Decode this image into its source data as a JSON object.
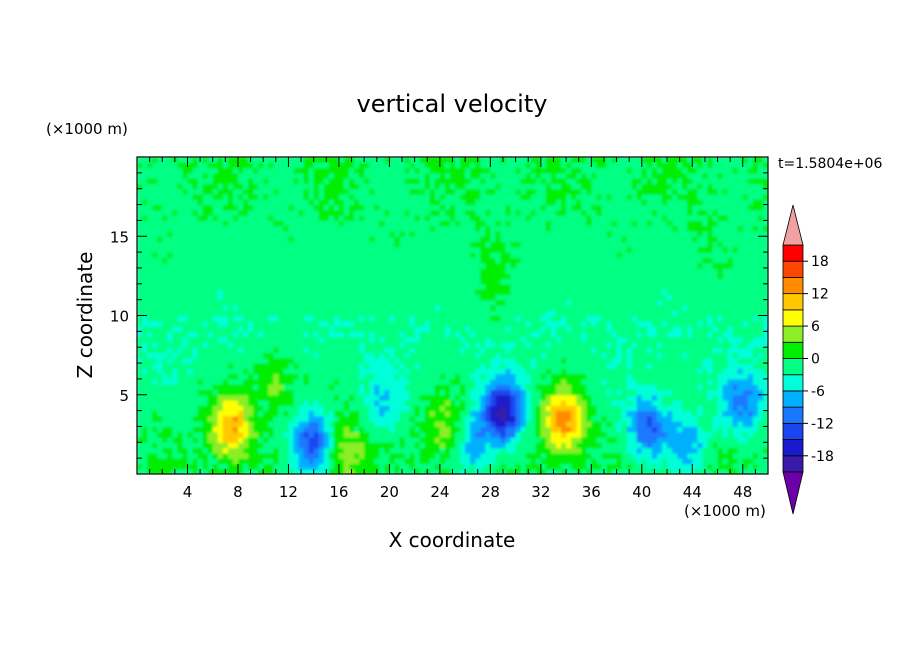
{
  "chart_data": {
    "type": "heatmap",
    "title": "vertical velocity",
    "xlabel": "X coordinate",
    "ylabel": "Z coordinate",
    "x_unit": "(×1000 m)",
    "y_unit": "(×1000 m)",
    "time_label": "t=1.5804e+06",
    "xlim": [
      0,
      50
    ],
    "ylim": [
      0,
      20
    ],
    "x_ticks": [
      4,
      8,
      12,
      16,
      20,
      24,
      28,
      32,
      36,
      40,
      44,
      48
    ],
    "y_ticks": [
      5,
      10,
      15
    ],
    "colorbar": {
      "levels": [
        -21,
        -18,
        -15,
        -12,
        -9,
        -6,
        -3,
        0,
        3,
        6,
        9,
        12,
        15,
        18,
        21
      ],
      "tick_labels": [
        "18",
        "12",
        "6",
        "0",
        "-6",
        "-12",
        "-18"
      ],
      "tick_values": [
        18,
        12,
        6,
        0,
        -6,
        -12,
        -18
      ],
      "colors_low_to_high": [
        "#6c00a8",
        "#3a1aa8",
        "#1a1acc",
        "#1a46f0",
        "#1a78ff",
        "#00b0ff",
        "#00ffd8",
        "#00ff82",
        "#00ee00",
        "#8cee28",
        "#ffff00",
        "#ffc800",
        "#ff8c00",
        "#ff4600",
        "#ff0000",
        "#f0a0a0"
      ]
    },
    "features": [
      {
        "x": 7.5,
        "z": 3.0,
        "value": 13
      },
      {
        "x": 11.0,
        "z": 6.0,
        "value": 5
      },
      {
        "x": 13.8,
        "z": 2.0,
        "value": -13
      },
      {
        "x": 16.5,
        "z": 1.5,
        "value": 6
      },
      {
        "x": 19.5,
        "z": 4.5,
        "value": -5
      },
      {
        "x": 24.5,
        "z": 3.0,
        "value": 6
      },
      {
        "x": 26.5,
        "z": 2.0,
        "value": -7
      },
      {
        "x": 29.0,
        "z": 4.0,
        "value": -18
      },
      {
        "x": 33.8,
        "z": 3.5,
        "value": 15
      },
      {
        "x": 40.5,
        "z": 3.0,
        "value": -11
      },
      {
        "x": 43.5,
        "z": 2.0,
        "value": -7
      },
      {
        "x": 48.0,
        "z": 4.5,
        "value": -9
      },
      {
        "x": 28.0,
        "z": 12.0,
        "value": 2
      },
      {
        "x": 45.0,
        "z": 14.0,
        "value": 1
      }
    ]
  }
}
